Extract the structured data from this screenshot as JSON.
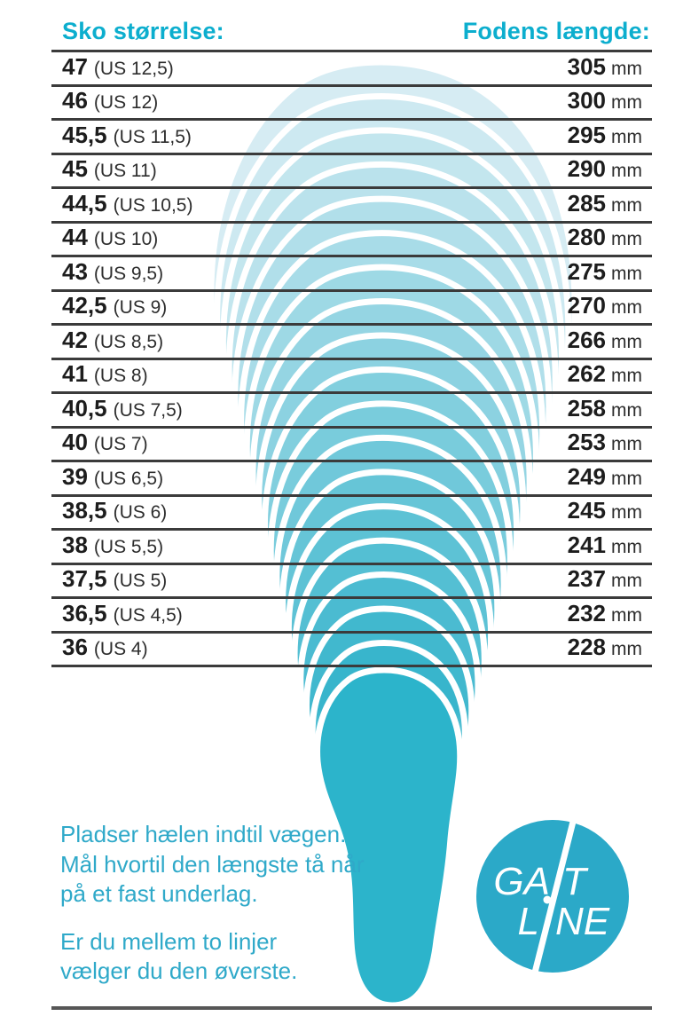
{
  "header": {
    "left": "Sko størrelse:",
    "right": "Fodens længde:"
  },
  "table": {
    "unit": "mm",
    "rows": [
      {
        "eu": "47",
        "us": "(US 12,5)",
        "mm": "305"
      },
      {
        "eu": "46",
        "us": "(US 12)",
        "mm": "300"
      },
      {
        "eu": "45,5",
        "us": "(US 11,5)",
        "mm": "295"
      },
      {
        "eu": "45",
        "us": "(US 11)",
        "mm": "290"
      },
      {
        "eu": "44,5",
        "us": "(US 10,5)",
        "mm": "285"
      },
      {
        "eu": "44",
        "us": "(US 10)",
        "mm": "280"
      },
      {
        "eu": "43",
        "us": "(US 9,5)",
        "mm": "275"
      },
      {
        "eu": "42,5",
        "us": "(US 9)",
        "mm": "270"
      },
      {
        "eu": "42",
        "us": "(US 8,5)",
        "mm": "266"
      },
      {
        "eu": "41",
        "us": "(US 8)",
        "mm": "262"
      },
      {
        "eu": "40,5",
        "us": "(US 7,5)",
        "mm": "258"
      },
      {
        "eu": "40",
        "us": "(US 7)",
        "mm": "253"
      },
      {
        "eu": "39",
        "us": "(US 6,5)",
        "mm": "249"
      },
      {
        "eu": "38,5",
        "us": "(US 6)",
        "mm": "245"
      },
      {
        "eu": "38",
        "us": "(US 5,5)",
        "mm": "241"
      },
      {
        "eu": "37,5",
        "us": "(US 5)",
        "mm": "237"
      },
      {
        "eu": "36,5",
        "us": "(US 4,5)",
        "mm": "232"
      },
      {
        "eu": "36",
        "us": "(US 4)",
        "mm": "228"
      }
    ]
  },
  "instructions": {
    "para1": [
      "Pladser hælen indtil vægen.",
      "Mål hvortil den længste tå når",
      "på et fast underlag."
    ],
    "para2": [
      "Er du mellem to linjer",
      "vælger du den øverste."
    ]
  },
  "logo": {
    "top_left": "GA",
    "top_right": "T",
    "bottom_left": "L",
    "bottom_right": "NE"
  },
  "colors": {
    "accent": "#0caece",
    "instr": "#2fa9c9",
    "foot": "#2cb4cb",
    "arc_light": "#d6ecf3",
    "arc_dark": "#38b5cc",
    "logo_circle": "#2ba9c8",
    "line": "#3b3b3b",
    "rule": "#565656",
    "ink": "#1d1d1d",
    "ink2": "#2d2d2d"
  }
}
